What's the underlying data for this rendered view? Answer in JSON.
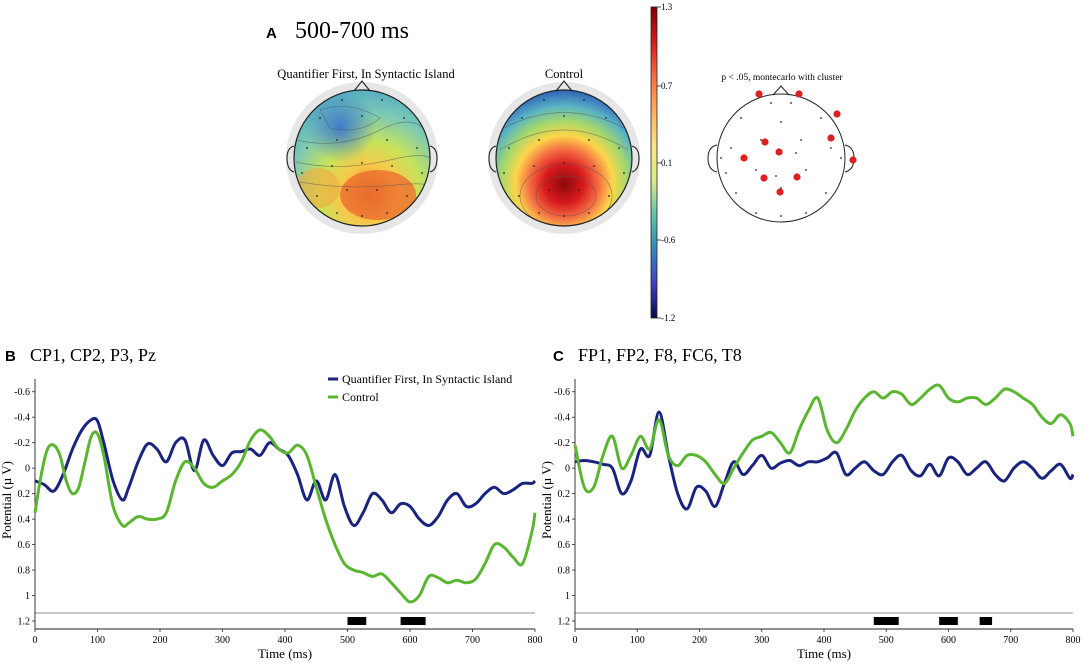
{
  "colors": {
    "series_quantifier": "#1a237e",
    "series_control": "#5ab630",
    "significance_marker": "#e02020",
    "time_window": "#000000"
  },
  "topography": {
    "panel_letter": "A",
    "window_label": "500-700 ms",
    "maps": [
      {
        "title": "Quantifier First, In Syntactic Island"
      },
      {
        "title": "Control"
      }
    ],
    "colorbar": {
      "ticks": [
        "1.3",
        "0.7",
        "0.1",
        "-0.6",
        "-1.2"
      ],
      "stops": [
        "#7f0000",
        "#d7191c",
        "#f46d43",
        "#fdae61",
        "#fee08b",
        "#d9ef8b",
        "#66c2a5",
        "#3288bd",
        "#4040c0",
        "#08084f"
      ]
    },
    "significance": {
      "title": "p < .05, montecarlo with cluster"
    }
  },
  "chart_data": [
    {
      "type": "line",
      "panel_letter": "B",
      "title": "CP1, CP2, P3, Pz",
      "xlabel": "Time (ms)",
      "ylabel": "Potential (µ V)",
      "xlim": [
        0,
        800
      ],
      "ylim": [
        -0.7,
        1.2
      ],
      "y_inverted": true,
      "xticks": [
        0,
        100,
        200,
        300,
        400,
        500,
        600,
        700,
        800
      ],
      "yticks": [
        -0.6,
        -0.4,
        -0.2,
        0,
        0.2,
        0.4,
        0.6,
        0.8,
        1,
        1.2
      ],
      "ytick_labels": [
        "-0.6",
        "-0.4",
        "-0.2",
        "0",
        "0.2",
        "0.4",
        "0.6",
        "0.8",
        "1",
        "1.2"
      ],
      "legend_position": "top-right",
      "time_windows_ms": [
        [
          500,
          530
        ],
        [
          585,
          625
        ]
      ],
      "series": [
        {
          "name": "Quantifier First, In Syntactic Island",
          "x": [
            0,
            15,
            30,
            45,
            60,
            75,
            90,
            100,
            110,
            125,
            140,
            150,
            165,
            180,
            195,
            210,
            225,
            240,
            255,
            270,
            285,
            300,
            315,
            330,
            345,
            360,
            375,
            390,
            405,
            420,
            435,
            450,
            465,
            480,
            495,
            510,
            525,
            540,
            555,
            570,
            585,
            600,
            615,
            630,
            645,
            660,
            675,
            690,
            705,
            720,
            735,
            750,
            765,
            780,
            795,
            800
          ],
          "y": [
            0.1,
            0.13,
            0.18,
            0.05,
            -0.15,
            -0.3,
            -0.38,
            -0.37,
            -0.2,
            0.1,
            0.25,
            0.15,
            -0.05,
            -0.19,
            -0.15,
            -0.05,
            -0.2,
            -0.22,
            0.02,
            -0.22,
            -0.1,
            -0.02,
            -0.12,
            -0.13,
            -0.15,
            -0.1,
            -0.2,
            -0.15,
            -0.1,
            0.05,
            0.25,
            0.1,
            0.25,
            0.05,
            0.3,
            0.45,
            0.35,
            0.2,
            0.25,
            0.35,
            0.28,
            0.3,
            0.4,
            0.45,
            0.38,
            0.25,
            0.2,
            0.3,
            0.28,
            0.2,
            0.15,
            0.2,
            0.17,
            0.12,
            0.12,
            0.1
          ]
        },
        {
          "name": "Control",
          "x": [
            0,
            10,
            20,
            30,
            40,
            50,
            60,
            70,
            80,
            90,
            100,
            110,
            125,
            140,
            150,
            165,
            180,
            195,
            210,
            225,
            240,
            255,
            270,
            285,
            300,
            315,
            330,
            345,
            360,
            375,
            390,
            405,
            420,
            435,
            450,
            465,
            480,
            495,
            510,
            525,
            540,
            555,
            570,
            585,
            600,
            615,
            630,
            645,
            660,
            675,
            690,
            705,
            720,
            735,
            750,
            765,
            780,
            795,
            800
          ],
          "y": [
            0.35,
            0.05,
            -0.15,
            -0.18,
            -0.1,
            0.1,
            0.2,
            0.15,
            -0.05,
            -0.25,
            -0.27,
            -0.1,
            0.3,
            0.45,
            0.43,
            0.38,
            0.4,
            0.4,
            0.35,
            0.1,
            -0.05,
            0.0,
            0.12,
            0.15,
            0.1,
            0.05,
            -0.05,
            -0.22,
            -0.3,
            -0.25,
            -0.15,
            -0.12,
            -0.18,
            -0.1,
            0.15,
            0.4,
            0.6,
            0.75,
            0.8,
            0.82,
            0.85,
            0.83,
            0.9,
            0.98,
            1.05,
            1.0,
            0.85,
            0.86,
            0.9,
            0.88,
            0.9,
            0.87,
            0.75,
            0.6,
            0.62,
            0.7,
            0.75,
            0.5,
            0.35
          ]
        }
      ]
    },
    {
      "type": "line",
      "panel_letter": "C",
      "title": "FP1, FP2, F8, FC6, T8",
      "xlabel": "Time (ms)",
      "ylabel": "Potential (µ V)",
      "xlim": [
        0,
        800
      ],
      "ylim": [
        -0.7,
        1.2
      ],
      "y_inverted": true,
      "xticks": [
        0,
        100,
        200,
        300,
        400,
        500,
        600,
        700,
        800
      ],
      "yticks": [
        -0.6,
        -0.4,
        -0.2,
        0,
        0.2,
        0.4,
        0.6,
        0.8,
        1,
        1.2
      ],
      "ytick_labels": [
        "-0.6",
        "-0.4",
        "-0.2",
        "0",
        "0.2",
        "0.4",
        "0.6",
        "0.8",
        "1",
        "1.2"
      ],
      "time_windows_ms": [
        [
          480,
          520
        ],
        [
          585,
          615
        ],
        [
          650,
          670
        ]
      ],
      "series": [
        {
          "name": "Quantifier First, In Syntactic Island",
          "x": [
            0,
            15,
            30,
            45,
            60,
            75,
            90,
            105,
            120,
            135,
            150,
            165,
            180,
            195,
            210,
            225,
            240,
            255,
            270,
            285,
            300,
            315,
            330,
            345,
            360,
            375,
            390,
            405,
            420,
            435,
            450,
            465,
            480,
            495,
            510,
            525,
            540,
            555,
            570,
            585,
            600,
            615,
            630,
            645,
            660,
            675,
            690,
            705,
            720,
            735,
            750,
            765,
            780,
            795,
            800
          ],
          "y": [
            -0.05,
            -0.06,
            -0.05,
            -0.03,
            0.0,
            0.2,
            0.1,
            -0.15,
            -0.1,
            -0.44,
            -0.1,
            0.2,
            0.32,
            0.15,
            0.18,
            0.3,
            0.12,
            -0.05,
            0.05,
            -0.02,
            -0.1,
            0.0,
            -0.04,
            -0.06,
            -0.02,
            -0.05,
            -0.05,
            -0.08,
            -0.12,
            0.05,
            0.0,
            -0.05,
            0.02,
            0.05,
            -0.05,
            -0.1,
            0.02,
            0.06,
            -0.03,
            0.06,
            -0.08,
            -0.05,
            0.05,
            0.0,
            -0.05,
            0.05,
            0.1,
            0.0,
            -0.05,
            0.0,
            0.08,
            0.02,
            -0.03,
            0.08,
            0.05
          ]
        },
        {
          "name": "Control",
          "x": [
            0,
            15,
            30,
            45,
            60,
            75,
            90,
            105,
            120,
            135,
            150,
            165,
            180,
            195,
            210,
            225,
            240,
            255,
            270,
            285,
            300,
            315,
            330,
            345,
            360,
            375,
            390,
            405,
            420,
            435,
            450,
            465,
            480,
            495,
            510,
            525,
            540,
            555,
            570,
            585,
            600,
            615,
            630,
            645,
            660,
            675,
            690,
            705,
            720,
            735,
            750,
            765,
            780,
            795,
            800
          ],
          "y": [
            -0.18,
            0.15,
            0.15,
            -0.1,
            -0.25,
            0.0,
            -0.1,
            -0.25,
            -0.15,
            -0.38,
            -0.1,
            -0.02,
            -0.1,
            -0.1,
            -0.05,
            0.05,
            0.12,
            0.0,
            -0.12,
            -0.22,
            -0.25,
            -0.28,
            -0.2,
            -0.12,
            -0.3,
            -0.45,
            -0.55,
            -0.3,
            -0.2,
            -0.3,
            -0.45,
            -0.55,
            -0.6,
            -0.55,
            -0.6,
            -0.58,
            -0.5,
            -0.55,
            -0.62,
            -0.65,
            -0.55,
            -0.52,
            -0.55,
            -0.55,
            -0.5,
            -0.55,
            -0.62,
            -0.6,
            -0.55,
            -0.5,
            -0.4,
            -0.35,
            -0.42,
            -0.35,
            -0.25
          ]
        }
      ]
    }
  ]
}
